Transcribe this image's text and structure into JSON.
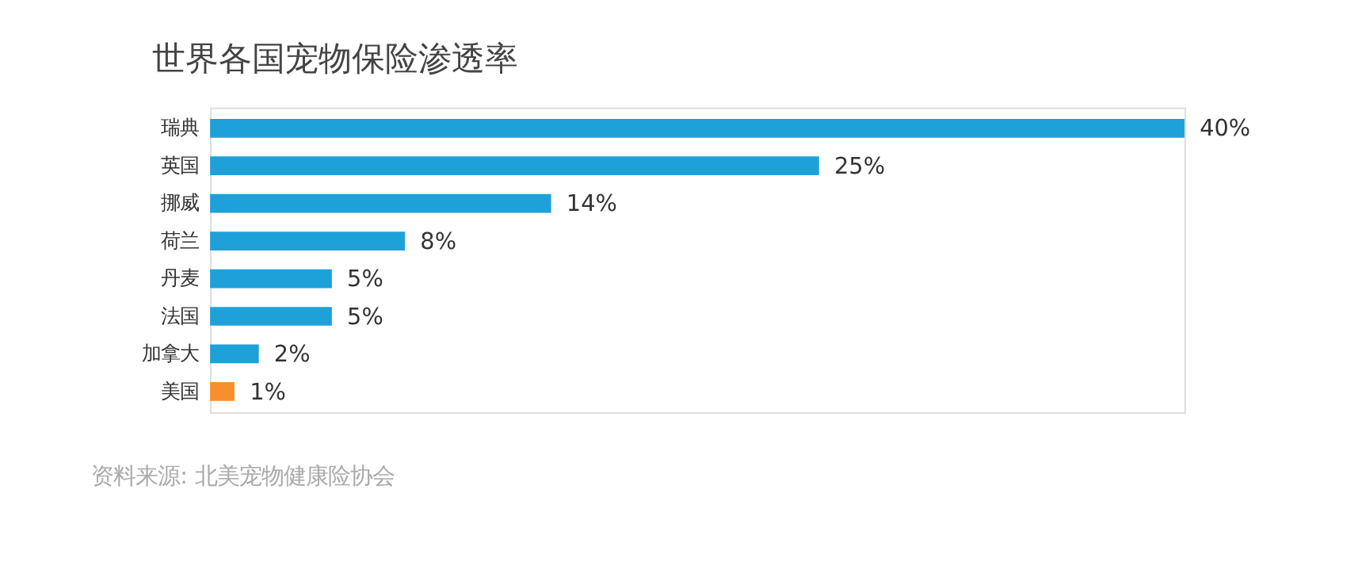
{
  "chart_data": {
    "type": "bar",
    "orientation": "horizontal",
    "title": "世界各国宠物保险渗透率",
    "categories": [
      "瑞典",
      "英国",
      "挪威",
      "荷兰",
      "丹麦",
      "法国",
      "加拿大",
      "美国"
    ],
    "values": [
      40,
      25,
      14,
      8,
      5,
      5,
      2,
      1
    ],
    "colors": [
      "#1ea1d9",
      "#1ea1d9",
      "#1ea1d9",
      "#1ea1d9",
      "#1ea1d9",
      "#1ea1d9",
      "#1ea1d9",
      "#f7902b"
    ],
    "value_labels": [
      "40%",
      "25%",
      "14%",
      "8%",
      "5%",
      "5%",
      "2%",
      "1%"
    ],
    "annotations": [
      "资料来源: 北美宠物健康险协会"
    ]
  }
}
